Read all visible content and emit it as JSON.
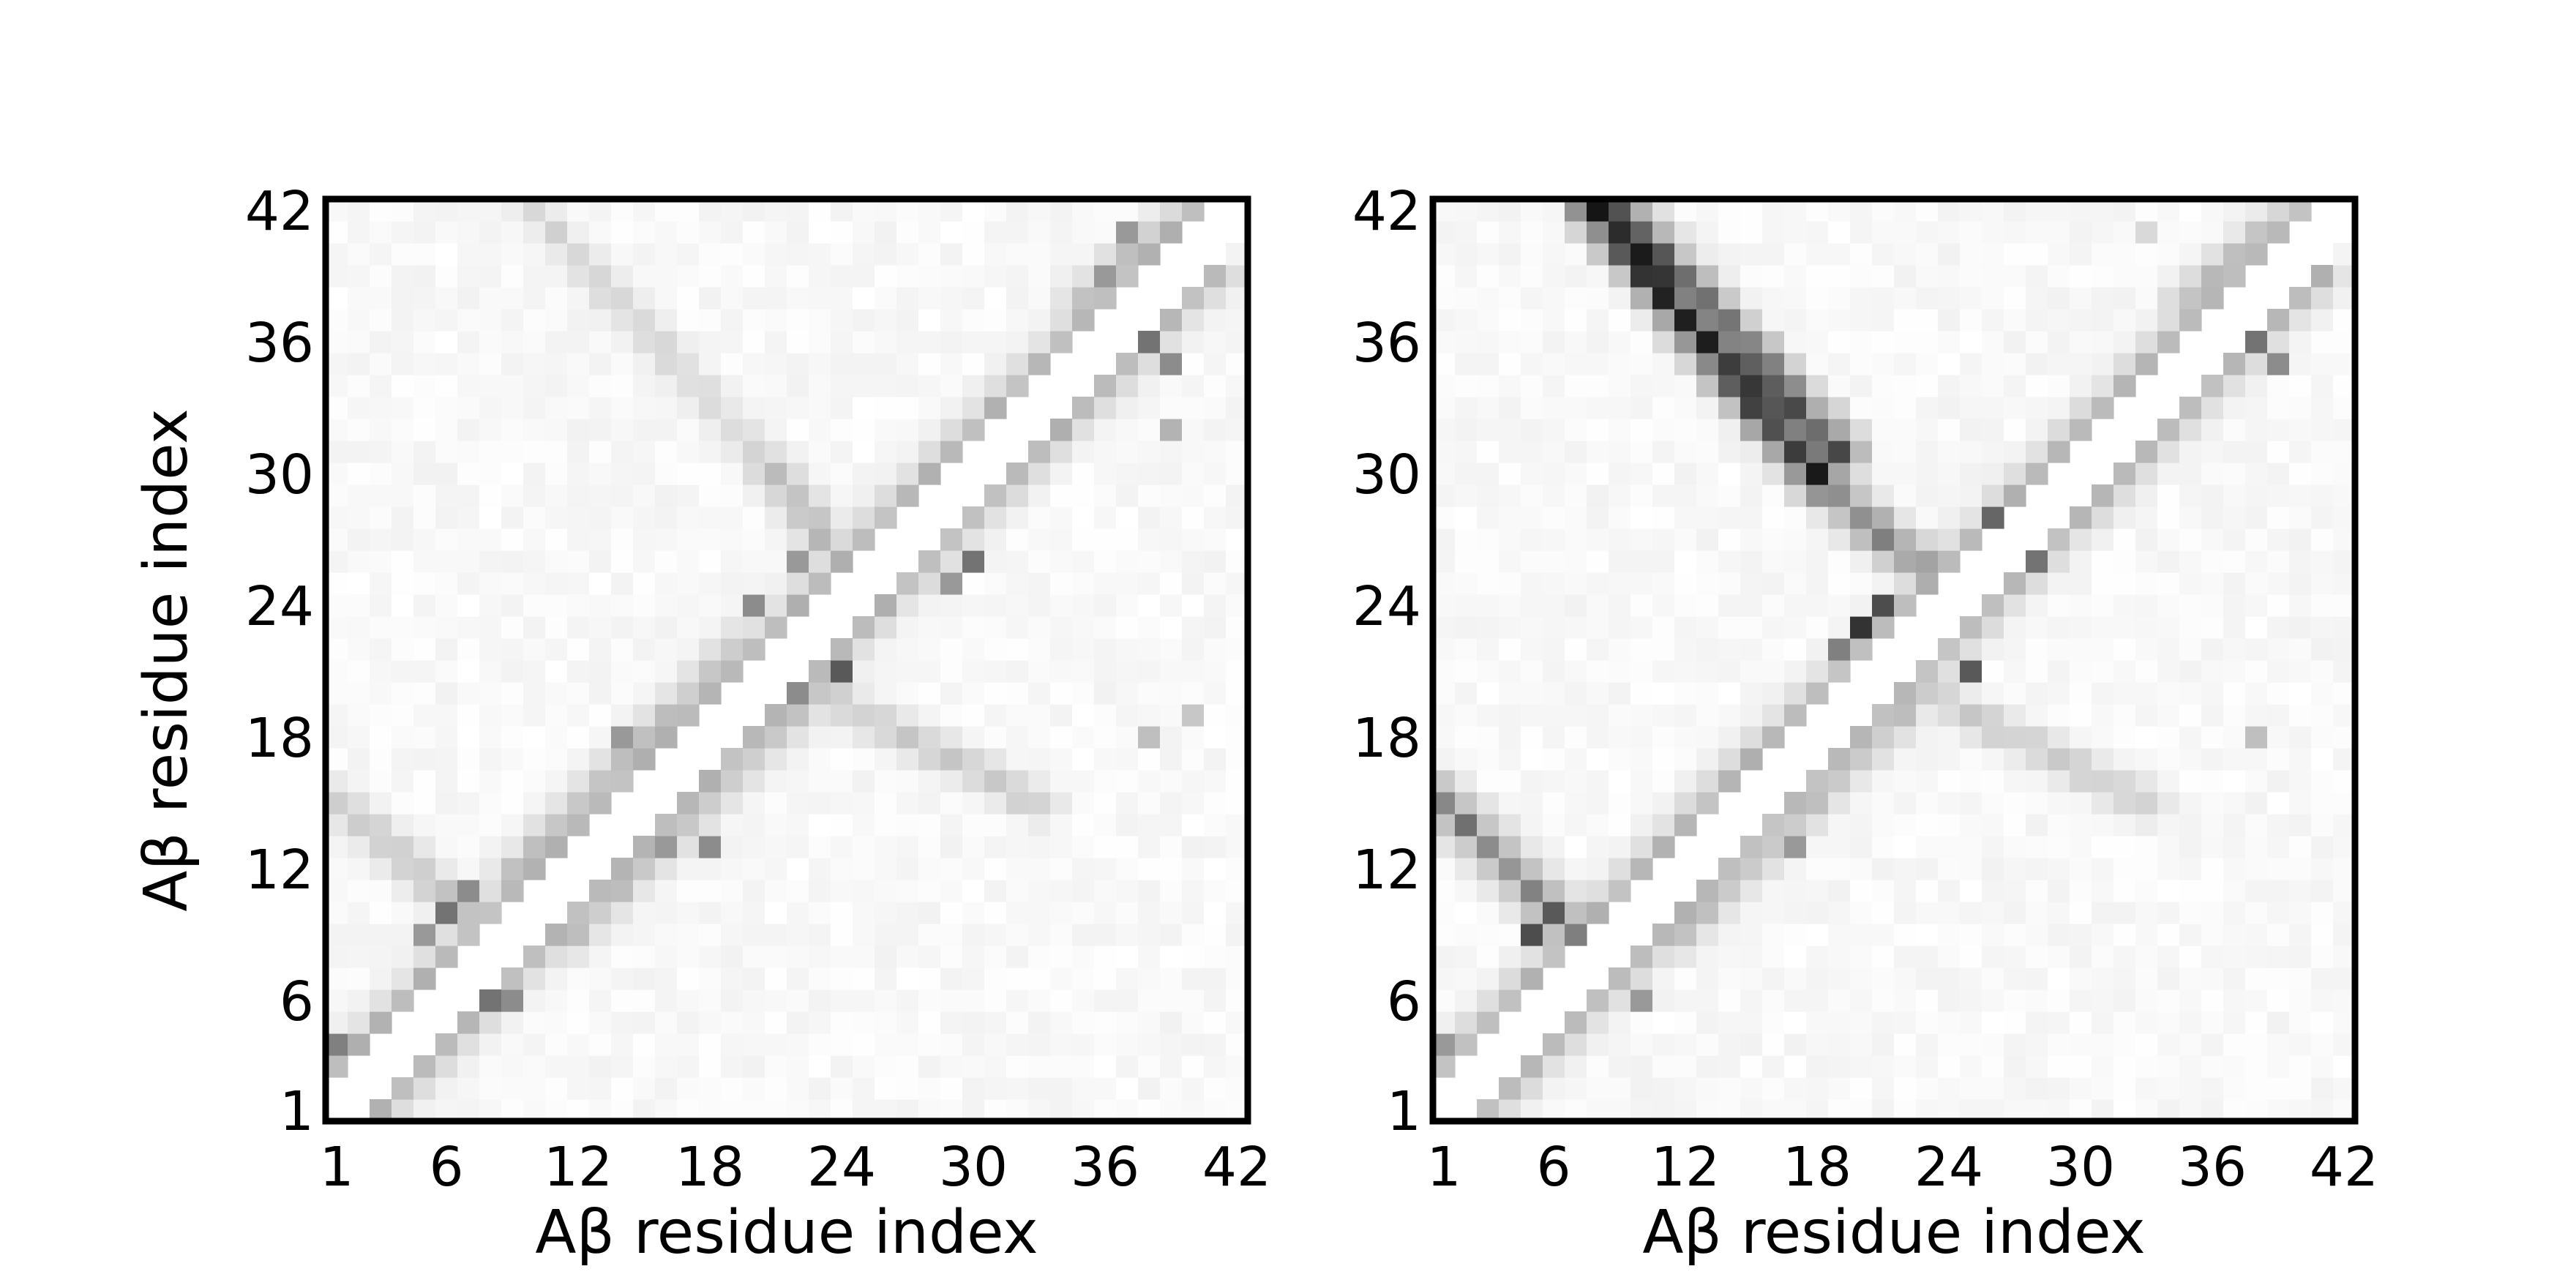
{
  "chart_data": [
    {
      "type": "heatmap",
      "panel": "left",
      "title": "",
      "xlabel": "Aβ residue index",
      "ylabel": "Aβ residue index",
      "xlim": [
        1,
        42
      ],
      "ylim": [
        1,
        42
      ],
      "x_ticks": [
        "1",
        "6",
        "12",
        "18",
        "24",
        "30",
        "36",
        "42"
      ],
      "y_ticks": [
        "1",
        "6",
        "12",
        "18",
        "24",
        "30",
        "36",
        "42"
      ],
      "colormap": "gray_r",
      "value_range": [
        0,
        1
      ],
      "diagonal": "blank",
      "features": [
        {
          "from": [
            3,
            1
          ],
          "to": [
            41,
            39
          ],
          "value": 0.3
        },
        {
          "from": [
            1,
            3
          ],
          "to": [
            39,
            41
          ],
          "value": 0.3
        },
        {
          "from": [
            9,
            12
          ],
          "to": [
            19,
            22
          ],
          "value": 0.25
        },
        {
          "from": [
            12,
            9
          ],
          "to": [
            22,
            19
          ],
          "value": 0.25
        },
        {
          "from": [
            10,
            42
          ],
          "to": [
            21,
            30
          ],
          "value": 0.18
        },
        {
          "from": [
            21,
            30
          ],
          "to": [
            24,
            26
          ],
          "value": 0.3
        },
        {
          "from": [
            23,
            20
          ],
          "to": [
            33,
            15
          ],
          "value": 0.22
        },
        {
          "from": [
            37,
            37
          ],
          "to": [
            40,
            40
          ],
          "value": 0.45
        },
        {
          "from": [
            35,
            38
          ],
          "to": [
            40,
            42
          ],
          "value": 0.3
        },
        {
          "from": [
            1,
            15
          ],
          "to": [
            7,
            10
          ],
          "value": 0.25
        }
      ],
      "hotspots": [
        {
          "x": 6,
          "y": 10,
          "value": 0.55
        },
        {
          "x": 7,
          "y": 11,
          "value": 0.45
        },
        {
          "x": 5,
          "y": 9,
          "value": 0.4
        },
        {
          "x": 1,
          "y": 4,
          "value": 0.5
        },
        {
          "x": 8,
          "y": 6,
          "value": 0.55
        },
        {
          "x": 9,
          "y": 6,
          "value": 0.45
        },
        {
          "x": 24,
          "y": 21,
          "value": 0.65
        },
        {
          "x": 22,
          "y": 20,
          "value": 0.45
        },
        {
          "x": 30,
          "y": 26,
          "value": 0.55
        },
        {
          "x": 29,
          "y": 25,
          "value": 0.4
        },
        {
          "x": 20,
          "y": 24,
          "value": 0.45
        },
        {
          "x": 22,
          "y": 26,
          "value": 0.4
        },
        {
          "x": 18,
          "y": 13,
          "value": 0.45
        },
        {
          "x": 16,
          "y": 13,
          "value": 0.4
        },
        {
          "x": 14,
          "y": 18,
          "value": 0.4
        },
        {
          "x": 38,
          "y": 36,
          "value": 0.55
        },
        {
          "x": 39,
          "y": 35,
          "value": 0.45
        },
        {
          "x": 39,
          "y": 32,
          "value": 0.3
        },
        {
          "x": 37,
          "y": 41,
          "value": 0.4
        },
        {
          "x": 36,
          "y": 39,
          "value": 0.4
        },
        {
          "x": 38,
          "y": 18,
          "value": 0.25
        },
        {
          "x": 40,
          "y": 19,
          "value": 0.22
        }
      ]
    },
    {
      "type": "heatmap",
      "panel": "right",
      "title": "",
      "xlabel": "Aβ residue index",
      "ylabel": "",
      "xlim": [
        1,
        42
      ],
      "ylim": [
        1,
        42
      ],
      "x_ticks": [
        "1",
        "6",
        "12",
        "18",
        "24",
        "30",
        "36",
        "42"
      ],
      "y_ticks": [
        "1",
        "6",
        "12",
        "18",
        "24",
        "30",
        "36",
        "42"
      ],
      "colormap": "gray_r",
      "value_range": [
        0,
        1
      ],
      "diagonal": "blank",
      "features": [
        {
          "from": [
            3,
            1
          ],
          "to": [
            41,
            39
          ],
          "value": 0.3
        },
        {
          "from": [
            1,
            3
          ],
          "to": [
            39,
            41
          ],
          "value": 0.3
        },
        {
          "from": [
            8,
            42
          ],
          "to": [
            18,
            30
          ],
          "value": 0.95
        },
        {
          "from": [
            9,
            42
          ],
          "to": [
            19,
            31
          ],
          "value": 0.7
        },
        {
          "from": [
            18,
            30
          ],
          "to": [
            20,
            28
          ],
          "value": 0.55
        },
        {
          "from": [
            20,
            28
          ],
          "to": [
            25,
            24
          ],
          "value": 0.5
        },
        {
          "from": [
            1,
            15
          ],
          "to": [
            7,
            9
          ],
          "value": 0.55
        },
        {
          "from": [
            12,
            9
          ],
          "to": [
            22,
            19
          ],
          "value": 0.25
        },
        {
          "from": [
            23,
            20
          ],
          "to": [
            33,
            15
          ],
          "value": 0.22
        },
        {
          "from": [
            37,
            37
          ],
          "to": [
            40,
            40
          ],
          "value": 0.45
        },
        {
          "from": [
            35,
            38
          ],
          "to": [
            40,
            42
          ],
          "value": 0.3
        }
      ],
      "hotspots": [
        {
          "x": 20,
          "y": 23,
          "value": 0.8
        },
        {
          "x": 21,
          "y": 24,
          "value": 0.7
        },
        {
          "x": 19,
          "y": 22,
          "value": 0.5
        },
        {
          "x": 26,
          "y": 28,
          "value": 0.6
        },
        {
          "x": 25,
          "y": 21,
          "value": 0.65
        },
        {
          "x": 6,
          "y": 10,
          "value": 0.65
        },
        {
          "x": 5,
          "y": 9,
          "value": 0.7
        },
        {
          "x": 1,
          "y": 4,
          "value": 0.4
        },
        {
          "x": 10,
          "y": 6,
          "value": 0.4
        },
        {
          "x": 28,
          "y": 26,
          "value": 0.55
        },
        {
          "x": 17,
          "y": 13,
          "value": 0.4
        },
        {
          "x": 38,
          "y": 36,
          "value": 0.55
        },
        {
          "x": 39,
          "y": 35,
          "value": 0.45
        },
        {
          "x": 33,
          "y": 41,
          "value": 0.15
        },
        {
          "x": 38,
          "y": 18,
          "value": 0.25
        }
      ]
    }
  ]
}
